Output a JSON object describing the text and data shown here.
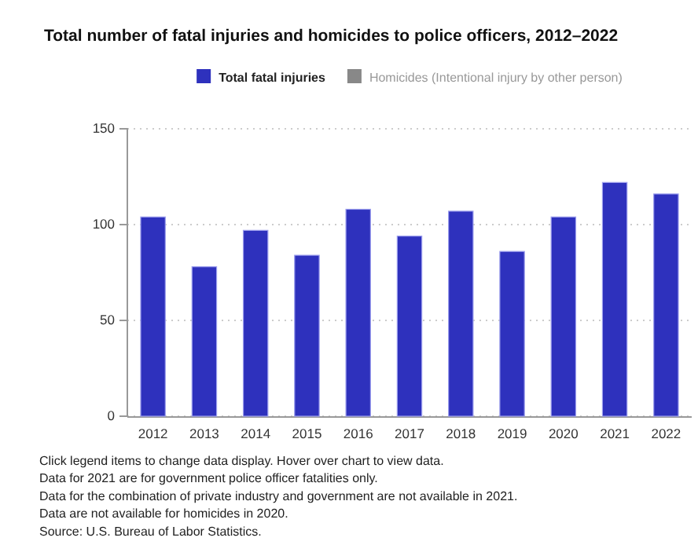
{
  "chart_data": {
    "type": "bar",
    "title": "Total number of fatal injuries and homicides to police officers, 2012–2022",
    "categories": [
      "2012",
      "2013",
      "2014",
      "2015",
      "2016",
      "2017",
      "2018",
      "2019",
      "2020",
      "2021",
      "2022"
    ],
    "series": [
      {
        "name": "Total fatal injuries",
        "color": "#2e31bd",
        "values": [
          104,
          78,
          97,
          84,
          108,
          94,
          107,
          86,
          104,
          122,
          116
        ]
      },
      {
        "name": "Homicides (Intentional injury by other person)",
        "color": "#888888",
        "values": [
          null,
          null,
          null,
          null,
          null,
          null,
          null,
          null,
          null,
          null,
          null
        ]
      }
    ],
    "ylim": [
      0,
      150
    ],
    "yticks": [
      0,
      50,
      100,
      150
    ],
    "grid": "y",
    "legend": "top",
    "annotations": [
      "Click legend items to change data display. Hover over chart to view data.",
      "Data for 2021 are for government police officer fatalities only.",
      "Data for the combination of private industry and government are not available in 2021.",
      "Data are not available for homicides in 2020.",
      "Source: U.S. Bureau of Labor Statistics."
    ]
  }
}
